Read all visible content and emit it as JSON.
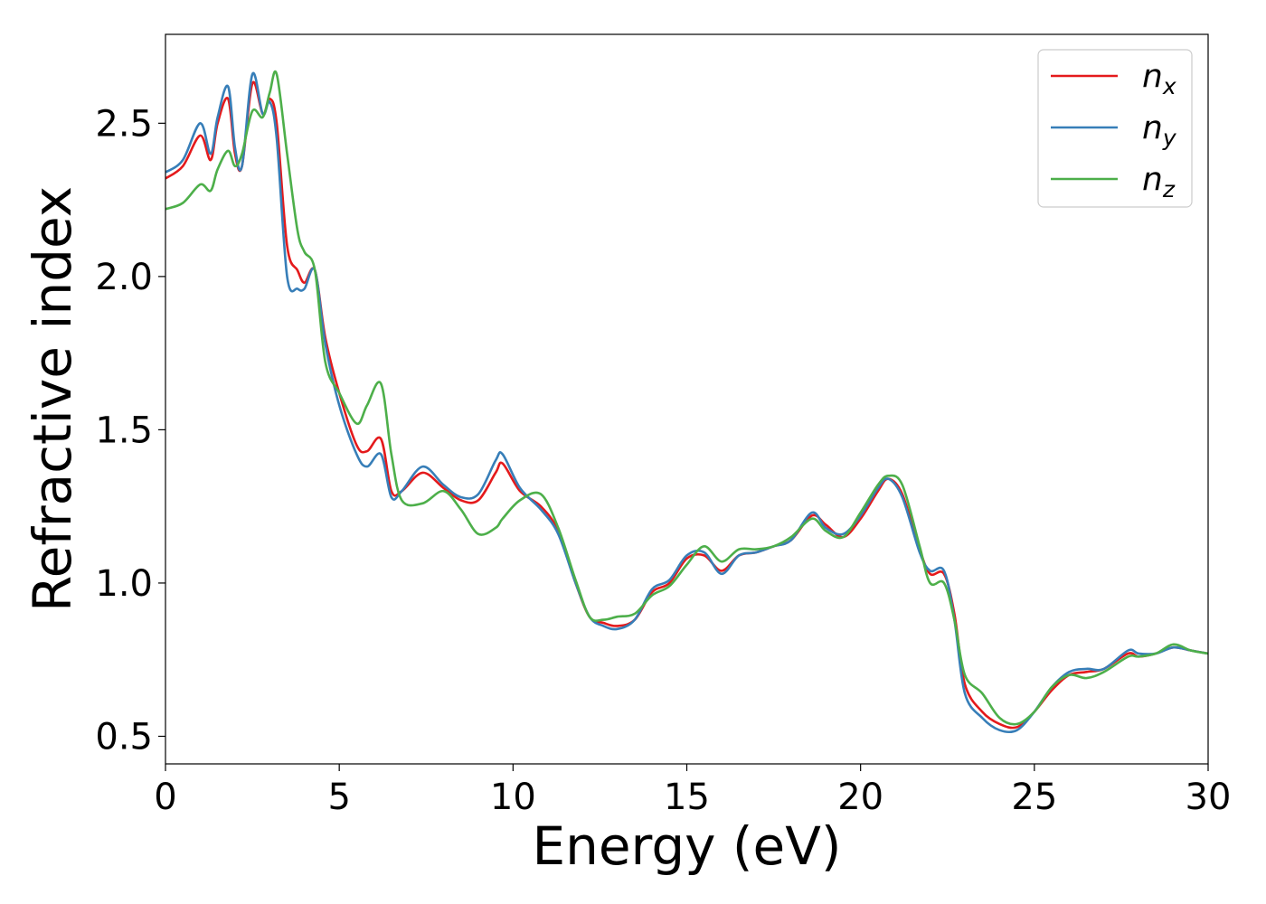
{
  "chart_data": {
    "type": "line",
    "xlabel": "Energy (eV)",
    "ylabel": "Refractive index",
    "xlim": [
      0,
      30
    ],
    "ylim": [
      0.41,
      2.79
    ],
    "xticks": [
      0,
      5,
      10,
      15,
      20,
      25,
      30
    ],
    "xtick_labels": [
      "0",
      "5",
      "10",
      "15",
      "20",
      "25",
      "30"
    ],
    "yticks": [
      0.5,
      1.0,
      1.5,
      2.0,
      2.5
    ],
    "ytick_labels": [
      "0.5",
      "1.0",
      "1.5",
      "2.0",
      "2.5"
    ],
    "grid": false,
    "legend_position": "top-right",
    "series": [
      {
        "name": "n",
        "subscript": "x",
        "color": "#e41a1c",
        "x": [
          0,
          0.5,
          1.0,
          1.3,
          1.5,
          1.8,
          2.0,
          2.2,
          2.5,
          2.8,
          3.0,
          3.2,
          3.5,
          3.8,
          4.0,
          4.3,
          4.6,
          5.0,
          5.5,
          5.8,
          6.2,
          6.5,
          6.8,
          7.4,
          8.0,
          8.5,
          9.0,
          9.5,
          9.7,
          10.2,
          10.8,
          11.3,
          11.8,
          12.2,
          12.6,
          13.0,
          13.5,
          14.0,
          14.5,
          15.0,
          15.5,
          16.0,
          16.5,
          17.0,
          17.5,
          18.0,
          18.6,
          19.0,
          19.5,
          20.0,
          20.5,
          20.8,
          21.2,
          21.7,
          22.0,
          22.4,
          22.7,
          23.0,
          23.5,
          24.0,
          24.5,
          25.0,
          25.5,
          26.0,
          26.5,
          27.0,
          27.7,
          28.0,
          28.5,
          29.0,
          29.5,
          30.0
        ],
        "y": [
          2.32,
          2.36,
          2.46,
          2.38,
          2.5,
          2.58,
          2.4,
          2.36,
          2.63,
          2.53,
          2.58,
          2.5,
          2.1,
          2.02,
          1.98,
          2.02,
          1.8,
          1.62,
          1.45,
          1.43,
          1.47,
          1.3,
          1.3,
          1.36,
          1.31,
          1.27,
          1.27,
          1.36,
          1.39,
          1.3,
          1.25,
          1.17,
          1.0,
          0.89,
          0.87,
          0.86,
          0.88,
          0.97,
          1.0,
          1.08,
          1.09,
          1.04,
          1.09,
          1.1,
          1.12,
          1.14,
          1.22,
          1.19,
          1.15,
          1.21,
          1.3,
          1.34,
          1.29,
          1.11,
          1.03,
          1.03,
          0.9,
          0.67,
          0.58,
          0.54,
          0.53,
          0.58,
          0.65,
          0.7,
          0.71,
          0.72,
          0.77,
          0.76,
          0.77,
          0.79,
          0.78,
          0.77
        ]
      },
      {
        "name": "n",
        "subscript": "y",
        "color": "#377eb8",
        "x": [
          0,
          0.5,
          1.0,
          1.3,
          1.5,
          1.8,
          2.0,
          2.2,
          2.5,
          2.8,
          3.0,
          3.2,
          3.5,
          3.8,
          4.0,
          4.3,
          4.6,
          5.0,
          5.5,
          5.8,
          6.2,
          6.5,
          6.8,
          7.4,
          8.0,
          8.5,
          9.0,
          9.5,
          9.7,
          10.2,
          10.8,
          11.3,
          11.8,
          12.2,
          12.6,
          13.0,
          13.5,
          14.0,
          14.5,
          15.0,
          15.5,
          16.0,
          16.5,
          17.0,
          17.5,
          18.0,
          18.6,
          19.0,
          19.5,
          20.0,
          20.5,
          20.8,
          21.2,
          21.7,
          22.0,
          22.4,
          22.7,
          23.0,
          23.5,
          24.0,
          24.5,
          25.0,
          25.5,
          26.0,
          26.5,
          27.0,
          27.7,
          28.0,
          28.5,
          29.0,
          29.5,
          30.0
        ],
        "y": [
          2.34,
          2.38,
          2.5,
          2.4,
          2.52,
          2.62,
          2.42,
          2.36,
          2.66,
          2.53,
          2.57,
          2.45,
          2.0,
          1.96,
          1.96,
          2.02,
          1.78,
          1.58,
          1.42,
          1.38,
          1.42,
          1.28,
          1.3,
          1.38,
          1.32,
          1.28,
          1.29,
          1.4,
          1.42,
          1.31,
          1.24,
          1.16,
          1.0,
          0.89,
          0.86,
          0.85,
          0.88,
          0.98,
          1.01,
          1.09,
          1.1,
          1.03,
          1.09,
          1.1,
          1.12,
          1.14,
          1.23,
          1.18,
          1.16,
          1.22,
          1.31,
          1.34,
          1.28,
          1.1,
          1.04,
          1.04,
          0.88,
          0.64,
          0.56,
          0.52,
          0.52,
          0.58,
          0.66,
          0.71,
          0.72,
          0.72,
          0.78,
          0.77,
          0.77,
          0.79,
          0.78,
          0.77
        ]
      },
      {
        "name": "n",
        "subscript": "z",
        "color": "#4daf4a",
        "x": [
          0,
          0.5,
          1.0,
          1.3,
          1.5,
          1.8,
          2.0,
          2.2,
          2.5,
          2.8,
          3.0,
          3.2,
          3.5,
          3.8,
          4.0,
          4.3,
          4.6,
          5.0,
          5.5,
          5.8,
          6.2,
          6.5,
          6.8,
          7.4,
          8.0,
          8.5,
          9.0,
          9.5,
          9.7,
          10.2,
          10.8,
          11.3,
          11.8,
          12.2,
          12.6,
          13.0,
          13.5,
          14.0,
          14.5,
          15.0,
          15.5,
          16.0,
          16.5,
          17.0,
          17.5,
          18.0,
          18.6,
          19.0,
          19.5,
          20.0,
          20.5,
          20.8,
          21.2,
          21.7,
          22.0,
          22.4,
          22.7,
          23.0,
          23.5,
          24.0,
          24.5,
          25.0,
          25.5,
          26.0,
          26.5,
          27.0,
          27.7,
          28.0,
          28.5,
          29.0,
          29.5,
          30.0
        ],
        "y": [
          2.22,
          2.24,
          2.3,
          2.28,
          2.35,
          2.41,
          2.36,
          2.4,
          2.54,
          2.52,
          2.6,
          2.66,
          2.4,
          2.15,
          2.08,
          2.02,
          1.72,
          1.62,
          1.52,
          1.58,
          1.65,
          1.42,
          1.27,
          1.26,
          1.3,
          1.24,
          1.16,
          1.18,
          1.21,
          1.27,
          1.29,
          1.18,
          1.01,
          0.89,
          0.88,
          0.89,
          0.9,
          0.96,
          0.99,
          1.06,
          1.12,
          1.07,
          1.11,
          1.11,
          1.12,
          1.15,
          1.21,
          1.17,
          1.15,
          1.23,
          1.32,
          1.35,
          1.32,
          1.12,
          1.0,
          1.0,
          0.88,
          0.7,
          0.64,
          0.56,
          0.54,
          0.58,
          0.66,
          0.7,
          0.69,
          0.71,
          0.76,
          0.76,
          0.77,
          0.8,
          0.78,
          0.77
        ]
      }
    ]
  }
}
